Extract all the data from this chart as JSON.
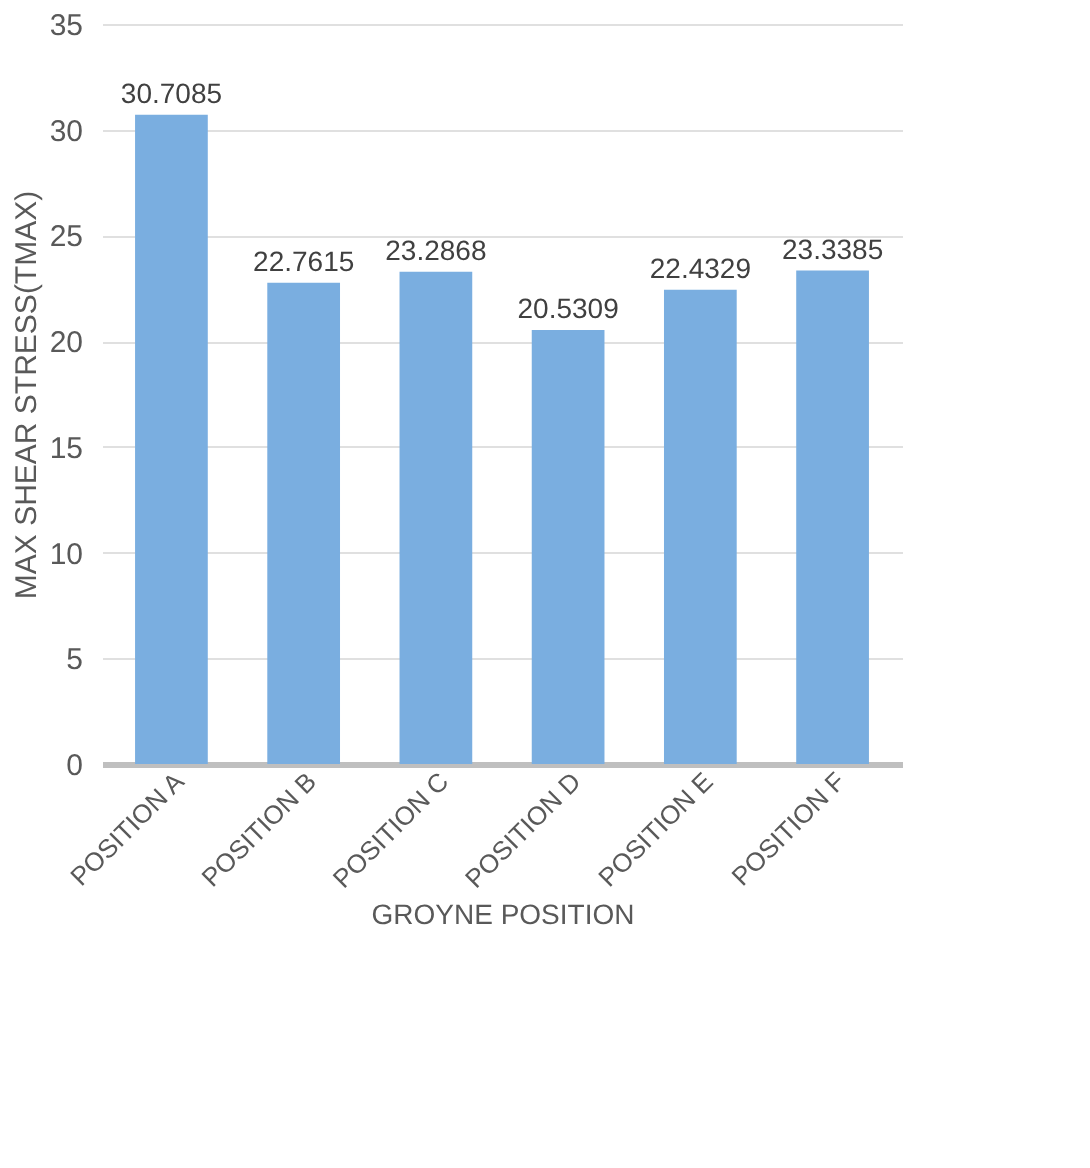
{
  "chart_data": {
    "type": "bar",
    "xlabel": "GROYNE POSITION",
    "ylabel": "MAX SHEAR STRESS(TMAX)",
    "categories": [
      "POSITION A",
      "POSITION B",
      "POSITION C",
      "POSITION D",
      "POSITION E",
      "POSITION F"
    ],
    "values": [
      30.7085,
      22.7615,
      23.2868,
      20.5309,
      22.4329,
      23.3385
    ],
    "color": "#7aaee0",
    "ylim": [
      0,
      35
    ],
    "yticks": [
      0,
      5,
      10,
      15,
      20,
      25,
      30,
      35
    ],
    "grid": "y",
    "data_labels": true
  }
}
